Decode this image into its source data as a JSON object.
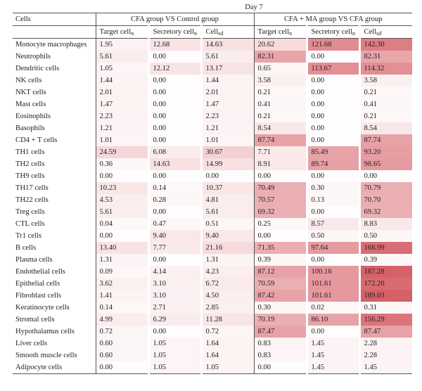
{
  "table": {
    "day_label": "Day 7",
    "row_header": "Cells",
    "group1_label": "CFA group VS Control group",
    "group2_label": "CFA + MA group VS CFA group",
    "sub_headers": [
      {
        "base": "Target cell",
        "sub": "n"
      },
      {
        "base": "Secretory cell",
        "sub": "n"
      },
      {
        "base": "Cell",
        "sub": "sd"
      },
      {
        "base": "Target cell",
        "sub": "n"
      },
      {
        "base": "Secretory cell",
        "sub": "n"
      },
      {
        "base": "Cell",
        "sub": "sd"
      }
    ],
    "rows": [
      {
        "name": "Monocyte macrophages",
        "values": [
          "1.95",
          "12.68",
          "14.63",
          "20.62",
          "121.68",
          "142.30"
        ]
      },
      {
        "name": "Neutrophils",
        "values": [
          "5.61",
          "0.00",
          "5.61",
          "82.31",
          "0.00",
          "82.31"
        ]
      },
      {
        "name": "Dendritic cells",
        "values": [
          "1.05",
          "12.12",
          "13.17",
          "0.65",
          "113.67",
          "114.32"
        ]
      },
      {
        "name": "NK cells",
        "values": [
          "1.44",
          "0.00",
          "1.44",
          "3.58",
          "0.00",
          "3.58"
        ]
      },
      {
        "name": "NKT cells",
        "values": [
          "2.01",
          "0.00",
          "2.01",
          "0.21",
          "0.00",
          "0.21"
        ]
      },
      {
        "name": "Mast cells",
        "values": [
          "1.47",
          "0.00",
          "1.47",
          "0.41",
          "0.00",
          "0.41"
        ]
      },
      {
        "name": "Eosinophils",
        "values": [
          "2.23",
          "0.00",
          "2.23",
          "0.21",
          "0.00",
          "0.21"
        ]
      },
      {
        "name": "Basophils",
        "values": [
          "1.21",
          "0.00",
          "1.21",
          "8.54",
          "0.00",
          "8.54"
        ]
      },
      {
        "name": "CD4 + T cells",
        "values": [
          "1.01",
          "0.00",
          "1.01",
          "87.74",
          "0.00",
          "87.74"
        ]
      },
      {
        "name": "TH1 cells",
        "values": [
          "24.59",
          "6.08",
          "30.67",
          "7.71",
          "85.49",
          "93.20"
        ]
      },
      {
        "name": "TH2 cells",
        "values": [
          "0.36",
          "14.63",
          "14.99",
          "8.91",
          "89.74",
          "98.65"
        ]
      },
      {
        "name": "TH9 cells",
        "values": [
          "0.00",
          "0.00",
          "0.00",
          "0.00",
          "0.00",
          "0.00"
        ]
      },
      {
        "name": "TH17 cells",
        "values": [
          "10.23",
          "0.14",
          "10.37",
          "70.49",
          "0.30",
          "70.79"
        ]
      },
      {
        "name": "TH22 cells",
        "values": [
          "4.53",
          "0.28",
          "4.81",
          "70.57",
          "0.13",
          "70.70"
        ]
      },
      {
        "name": "Treg cells",
        "values": [
          "5.61",
          "0.00",
          "5.61",
          "69.32",
          "0.00",
          "69.32"
        ]
      },
      {
        "name": "CTL cells",
        "values": [
          "0.04",
          "0.47",
          "0.51",
          "0.25",
          "8.57",
          "8.83"
        ]
      },
      {
        "name": "Tr1 cells",
        "values": [
          "0.00",
          "9.40",
          "9.40",
          "0.00",
          "0.50",
          "0.50"
        ]
      },
      {
        "name": "B cells",
        "values": [
          "13.40",
          "7.77",
          "21.16",
          "71.35",
          "97.64",
          "168.99"
        ]
      },
      {
        "name": "Plasma cells",
        "values": [
          "1.31",
          "0.00",
          "1.31",
          "0.39",
          "0.00",
          "0.39"
        ]
      },
      {
        "name": "Endothelial cells",
        "values": [
          "0.09",
          "4.14",
          "4.23",
          "87.12",
          "100.16",
          "187.28"
        ]
      },
      {
        "name": "Epithelial cells",
        "values": [
          "3.62",
          "3.10",
          "6.72",
          "70.59",
          "101.61",
          "172.20"
        ]
      },
      {
        "name": "Fibroblast cells",
        "values": [
          "1.41",
          "3.10",
          "4.50",
          "87.42",
          "101.61",
          "189.03"
        ]
      },
      {
        "name": "Keratinocyte cells",
        "values": [
          "0.14",
          "2.71",
          "2.85",
          "0.30",
          "0.02",
          "0.31"
        ]
      },
      {
        "name": "Stromal cells",
        "values": [
          "4.99",
          "6.29",
          "11.28",
          "70.19",
          "86.10",
          "156.29"
        ]
      },
      {
        "name": "Hypothalamus cells",
        "values": [
          "0.72",
          "0.00",
          "0.72",
          "87.47",
          "0.00",
          "87.47"
        ]
      },
      {
        "name": "Liver cells",
        "values": [
          "0.60",
          "1.05",
          "1.64",
          "0.83",
          "1.45",
          "2.28"
        ]
      },
      {
        "name": "Smooth muscle cells",
        "values": [
          "0.60",
          "1.05",
          "1.64",
          "0.83",
          "1.45",
          "2.28"
        ]
      },
      {
        "name": "Adipocyte cells",
        "values": [
          "0.00",
          "1.05",
          "1.05",
          "0.00",
          "1.45",
          "1.45"
        ]
      }
    ]
  }
}
